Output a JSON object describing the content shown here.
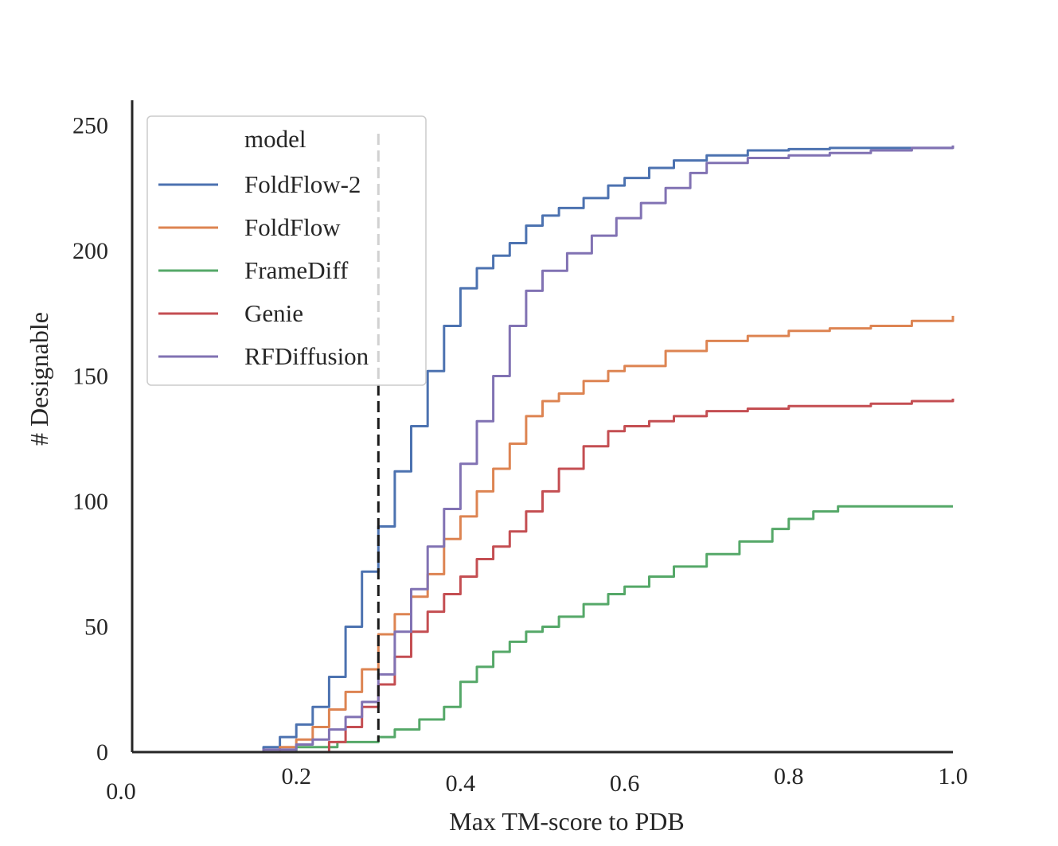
{
  "chart_data": {
    "type": "line",
    "subtype": "cumulative-step",
    "title": "",
    "xlabel": "Max TM-score to PDB",
    "ylabel": "# Designable",
    "xlim": [
      0.0,
      1.0
    ],
    "ylim": [
      0,
      260
    ],
    "x_ticks": [
      {
        "value": 0.0,
        "label": "0.0"
      },
      {
        "value": 0.2,
        "label": "0.2"
      },
      {
        "value": 0.4,
        "label": "0.4"
      },
      {
        "value": 0.6,
        "label": "0.6"
      },
      {
        "value": 0.8,
        "label": "0.8"
      },
      {
        "value": 1.0,
        "label": "1.0"
      }
    ],
    "y_ticks": [
      {
        "value": 0,
        "label": "0"
      },
      {
        "value": 50,
        "label": "50"
      },
      {
        "value": 100,
        "label": "100"
      },
      {
        "value": 150,
        "label": "150"
      },
      {
        "value": 200,
        "label": "200"
      },
      {
        "value": 250,
        "label": "250"
      }
    ],
    "threshold_line": {
      "x": 0.3,
      "style": "dashed",
      "color": "#1a1a1a"
    },
    "legend": {
      "title": "model",
      "placement": "top-left"
    },
    "series": [
      {
        "name": "FoldFlow-2",
        "color": "#4c72b0",
        "x": [
          0,
          0.14,
          0.16,
          0.18,
          0.2,
          0.22,
          0.24,
          0.26,
          0.28,
          0.3,
          0.32,
          0.34,
          0.36,
          0.38,
          0.4,
          0.42,
          0.44,
          0.46,
          0.48,
          0.5,
          0.52,
          0.55,
          0.58,
          0.6,
          0.63,
          0.66,
          0.7,
          0.75,
          0.8,
          0.85,
          0.9,
          0.95,
          1.0
        ],
        "y": [
          0,
          0,
          2,
          6,
          11,
          18,
          30,
          50,
          72,
          90,
          112,
          130,
          152,
          170,
          185,
          193,
          198,
          203,
          210,
          214,
          217,
          221,
          226,
          229,
          233,
          236,
          238,
          240,
          240.5,
          241,
          241,
          241,
          241
        ]
      },
      {
        "name": "FoldFlow",
        "color": "#dd8452",
        "x": [
          0,
          0.16,
          0.18,
          0.2,
          0.22,
          0.24,
          0.26,
          0.28,
          0.3,
          0.32,
          0.34,
          0.36,
          0.38,
          0.4,
          0.42,
          0.44,
          0.46,
          0.48,
          0.5,
          0.52,
          0.55,
          0.58,
          0.6,
          0.65,
          0.7,
          0.75,
          0.8,
          0.85,
          0.9,
          0.95,
          1.0
        ],
        "y": [
          0,
          0,
          2,
          5,
          10,
          17,
          24,
          33,
          47,
          55,
          62,
          71,
          85,
          94,
          104,
          113,
          123,
          134,
          140,
          143,
          148,
          152,
          154,
          160,
          164,
          166,
          168,
          169,
          170,
          172,
          174
        ]
      },
      {
        "name": "FrameDiff",
        "color": "#55a868",
        "x": [
          0,
          0.2,
          0.25,
          0.3,
          0.32,
          0.35,
          0.38,
          0.4,
          0.42,
          0.44,
          0.46,
          0.48,
          0.5,
          0.52,
          0.55,
          0.58,
          0.6,
          0.63,
          0.66,
          0.7,
          0.74,
          0.78,
          0.8,
          0.83,
          0.86,
          0.9,
          0.95,
          1.0
        ],
        "y": [
          0,
          2,
          4,
          6,
          9,
          13,
          18,
          28,
          34,
          40,
          44,
          48,
          50,
          54,
          59,
          63,
          66,
          70,
          74,
          79,
          84,
          89,
          93,
          96,
          98,
          98,
          98,
          98
        ]
      },
      {
        "name": "Genie",
        "color": "#c44e52",
        "x": [
          0,
          0.22,
          0.24,
          0.26,
          0.28,
          0.3,
          0.32,
          0.34,
          0.36,
          0.38,
          0.4,
          0.42,
          0.44,
          0.46,
          0.48,
          0.5,
          0.52,
          0.55,
          0.58,
          0.6,
          0.63,
          0.66,
          0.7,
          0.75,
          0.8,
          0.85,
          0.9,
          0.95,
          1.0
        ],
        "y": [
          0,
          0,
          4,
          10,
          18,
          27,
          38,
          48,
          56,
          63,
          70,
          77,
          82,
          88,
          96,
          104,
          113,
          122,
          128,
          130,
          132,
          134,
          136,
          137,
          138,
          138,
          139,
          140,
          141
        ]
      },
      {
        "name": "RFDiffusion",
        "color": "#8172b3",
        "x": [
          0,
          0.16,
          0.18,
          0.2,
          0.22,
          0.24,
          0.26,
          0.28,
          0.3,
          0.32,
          0.34,
          0.36,
          0.38,
          0.4,
          0.42,
          0.44,
          0.46,
          0.48,
          0.5,
          0.53,
          0.56,
          0.59,
          0.62,
          0.65,
          0.68,
          0.7,
          0.75,
          0.8,
          0.85,
          0.9,
          0.95,
          1.0
        ],
        "y": [
          0,
          1,
          1,
          3,
          5,
          9,
          14,
          20,
          31,
          48,
          65,
          82,
          97,
          115,
          132,
          150,
          170,
          184,
          192,
          199,
          206,
          213,
          219,
          225,
          231,
          235,
          237,
          238,
          239,
          240,
          241,
          242
        ]
      }
    ]
  }
}
